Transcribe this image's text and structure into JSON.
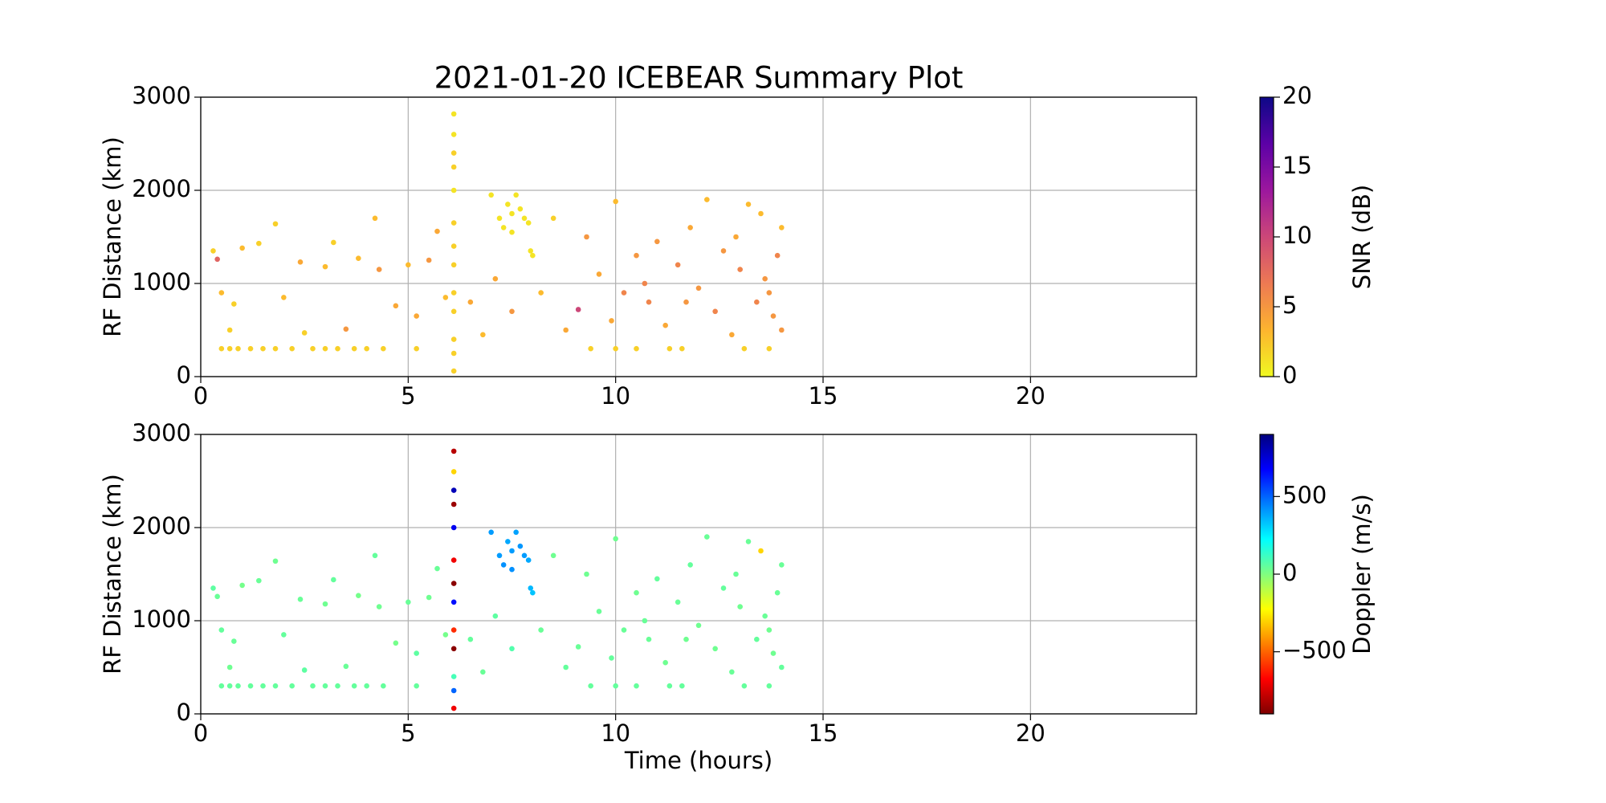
{
  "chart_data": [
    {
      "type": "scatter",
      "title": "2021-01-20 ICEBEAR Summary Plot",
      "ylabel": "RF Distance (km)",
      "xlim": [
        0,
        24
      ],
      "xticks": [
        0,
        5,
        10,
        15,
        20
      ],
      "ylim": [
        0,
        3000
      ],
      "yticks": [
        0,
        1000,
        2000,
        3000
      ],
      "grid": true,
      "x": [
        0.5,
        0.7,
        0.9,
        1.2,
        1.5,
        1.8,
        2.2,
        2.7,
        3.0,
        3.3,
        3.7,
        4.0,
        4.4,
        5.2,
        9.4,
        10.0,
        10.5,
        11.3,
        11.6,
        13.1,
        13.7,
        0.3,
        0.4,
        0.5,
        0.7,
        0.8,
        1.0,
        1.4,
        1.8,
        2.0,
        2.4,
        2.5,
        3.0,
        3.2,
        3.5,
        3.8,
        4.2,
        4.3,
        4.7,
        5.0,
        5.2,
        5.5,
        5.7,
        5.9,
        6.1,
        6.1,
        6.1,
        6.1,
        6.1,
        6.1,
        6.1,
        6.1,
        6.1,
        6.1,
        6.1,
        6.1,
        6.1,
        7.2,
        7.3,
        7.4,
        7.5,
        7.6,
        7.7,
        7.8,
        7.9,
        7.5,
        7.95,
        8.0,
        7.0,
        6.5,
        6.8,
        7.1,
        7.5,
        8.2,
        8.5,
        8.8,
        9.1,
        9.3,
        9.6,
        9.9,
        10.0,
        10.2,
        10.5,
        10.8,
        11.0,
        11.2,
        11.5,
        11.8,
        12.0,
        12.2,
        12.4,
        12.6,
        12.8,
        13.0,
        13.2,
        13.4,
        13.5,
        13.6,
        13.8,
        13.9,
        14.0,
        14.0,
        13.7,
        10.7,
        11.7,
        12.9
      ],
      "y": [
        300,
        300,
        300,
        300,
        300,
        300,
        300,
        300,
        300,
        300,
        300,
        300,
        300,
        300,
        300,
        300,
        300,
        300,
        300,
        300,
        300,
        1350,
        1260,
        900,
        500,
        780,
        1380,
        1430,
        1640,
        850,
        1230,
        470,
        1180,
        1440,
        510,
        1270,
        1700,
        1150,
        760,
        1200,
        650,
        1250,
        1560,
        850,
        2820,
        2600,
        2400,
        2250,
        2000,
        1650,
        1400,
        1200,
        900,
        700,
        400,
        250,
        60,
        1700,
        1600,
        1850,
        1750,
        1950,
        1800,
        1700,
        1650,
        1550,
        1350,
        1300,
        1950,
        800,
        450,
        1050,
        700,
        900,
        1700,
        500,
        720,
        1500,
        1100,
        600,
        1880,
        900,
        1300,
        800,
        1450,
        550,
        1200,
        1600,
        950,
        1900,
        700,
        1350,
        450,
        1150,
        1850,
        800,
        1750,
        1050,
        650,
        1300,
        500,
        1600,
        900,
        1000,
        800,
        1500
      ],
      "c": [
        2,
        2,
        2,
        2,
        2,
        2,
        2,
        2,
        2,
        2,
        2,
        2,
        2,
        2,
        2,
        2,
        2,
        2,
        2,
        2,
        2,
        2,
        8,
        3,
        2,
        2,
        3,
        2,
        2,
        3,
        4,
        2,
        3,
        2,
        5,
        3,
        3,
        5,
        4,
        3,
        4,
        5,
        4,
        3,
        1,
        1,
        2,
        2,
        1,
        2,
        2,
        2,
        2,
        2,
        2,
        2,
        2,
        1,
        1,
        1,
        1,
        1,
        1,
        1,
        1,
        1,
        1,
        1,
        1,
        4,
        3,
        4,
        5,
        3,
        2,
        4,
        10,
        5,
        4,
        4,
        3,
        6,
        5,
        6,
        5,
        4,
        6,
        4,
        5,
        3,
        6,
        5,
        4,
        6,
        3,
        6,
        3,
        5,
        5,
        6,
        5,
        3,
        5,
        6,
        5,
        4
      ],
      "colorbar": {
        "label": "SNR (dB)",
        "lim": [
          0,
          20
        ],
        "ticks": [
          0,
          5,
          10,
          15,
          20
        ],
        "colormap": [
          "#f0f921",
          "#fdb42f",
          "#ed7953",
          "#cc4778",
          "#9c179e",
          "#5c01a6",
          "#0d0887"
        ]
      }
    },
    {
      "type": "scatter",
      "ylabel": "RF Distance (km)",
      "xlabel": "Time (hours)",
      "xlim": [
        0,
        24
      ],
      "xticks": [
        0,
        5,
        10,
        15,
        20
      ],
      "ylim": [
        0,
        3000
      ],
      "yticks": [
        0,
        1000,
        2000,
        3000
      ],
      "grid": true,
      "x": [
        0.5,
        0.7,
        0.9,
        1.2,
        1.5,
        1.8,
        2.2,
        2.7,
        3.0,
        3.3,
        3.7,
        4.0,
        4.4,
        5.2,
        9.4,
        10.0,
        10.5,
        11.3,
        11.6,
        13.1,
        13.7,
        0.3,
        0.4,
        0.5,
        0.7,
        0.8,
        1.0,
        1.4,
        1.8,
        2.0,
        2.4,
        2.5,
        3.0,
        3.2,
        3.5,
        3.8,
        4.2,
        4.3,
        4.7,
        5.0,
        5.2,
        5.5,
        5.7,
        5.9,
        6.1,
        6.1,
        6.1,
        6.1,
        6.1,
        6.1,
        6.1,
        6.1,
        6.1,
        6.1,
        6.1,
        6.1,
        6.1,
        7.2,
        7.3,
        7.4,
        7.5,
        7.6,
        7.7,
        7.8,
        7.9,
        7.5,
        7.95,
        8.0,
        7.0,
        6.5,
        6.8,
        7.1,
        7.5,
        8.2,
        8.5,
        8.8,
        9.1,
        9.3,
        9.6,
        9.9,
        10.0,
        10.2,
        10.5,
        10.8,
        11.0,
        11.2,
        11.5,
        11.8,
        12.0,
        12.2,
        12.4,
        12.6,
        12.8,
        13.0,
        13.2,
        13.4,
        13.5,
        13.6,
        13.8,
        13.9,
        14.0,
        14.0,
        13.7,
        10.7,
        11.7,
        12.9
      ],
      "y": [
        300,
        300,
        300,
        300,
        300,
        300,
        300,
        300,
        300,
        300,
        300,
        300,
        300,
        300,
        300,
        300,
        300,
        300,
        300,
        300,
        300,
        1350,
        1260,
        900,
        500,
        780,
        1380,
        1430,
        1640,
        850,
        1230,
        470,
        1180,
        1440,
        510,
        1270,
        1700,
        1150,
        760,
        1200,
        650,
        1250,
        1560,
        850,
        2820,
        2600,
        2400,
        2250,
        2000,
        1650,
        1400,
        1200,
        900,
        700,
        400,
        250,
        60,
        1700,
        1600,
        1850,
        1750,
        1950,
        1800,
        1700,
        1650,
        1550,
        1350,
        1300,
        1950,
        800,
        450,
        1050,
        700,
        900,
        1700,
        500,
        720,
        1500,
        1100,
        600,
        1880,
        900,
        1300,
        800,
        1450,
        550,
        1200,
        1600,
        950,
        1900,
        700,
        1350,
        450,
        1150,
        1850,
        800,
        1750,
        1050,
        650,
        1300,
        500,
        1600,
        900,
        1000,
        800,
        1500
      ],
      "c": [
        50,
        50,
        50,
        50,
        50,
        50,
        50,
        50,
        50,
        50,
        50,
        50,
        50,
        50,
        50,
        50,
        50,
        50,
        50,
        50,
        50,
        60,
        40,
        50,
        30,
        40,
        20,
        40,
        30,
        50,
        40,
        60,
        30,
        50,
        40,
        20,
        50,
        30,
        20,
        40,
        60,
        30,
        40,
        20,
        -800,
        -300,
        800,
        -850,
        700,
        -700,
        -880,
        650,
        -600,
        -880,
        100,
        500,
        -700,
        400,
        420,
        380,
        400,
        390,
        410,
        400,
        380,
        420,
        350,
        330,
        400,
        50,
        40,
        60,
        80,
        40,
        30,
        50,
        40,
        30,
        40,
        50,
        30,
        40,
        30,
        40,
        50,
        30,
        40,
        50,
        30,
        40,
        30,
        50,
        40,
        30,
        40,
        50,
        -300,
        40,
        30,
        40,
        50,
        40,
        30,
        40,
        30,
        40
      ],
      "colorbar": {
        "label": "Doppler (m/s)",
        "lim": [
          -900,
          900
        ],
        "ticks": [
          {
            "value": -500,
            "label": "−500"
          },
          0,
          500
        ],
        "colormap": [
          "#7f0000",
          "#ff0000",
          "#ff8000",
          "#ffff00",
          "#80ff80",
          "#00ffff",
          "#0080ff",
          "#0000ff",
          "#00007f"
        ]
      }
    }
  ]
}
